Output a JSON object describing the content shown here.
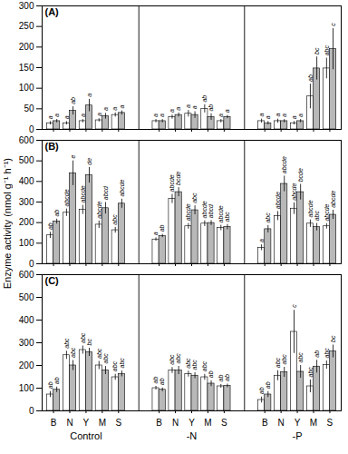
{
  "chart_data": [
    {
      "type": "bar",
      "title": "(A)",
      "categories": [
        "B",
        "N",
        "Y",
        "M",
        "S",
        "B",
        "N",
        "Y",
        "M",
        "S",
        "B",
        "N",
        "Y",
        "M",
        "S"
      ],
      "series": [
        {
          "color": "#ffffff",
          "values": [
            15,
            15,
            20,
            22,
            35,
            20,
            30,
            38,
            50,
            20,
            20,
            20,
            15,
            80,
            148
          ],
          "errors": [
            4,
            4,
            4,
            4,
            5,
            4,
            5,
            8,
            10,
            4,
            5,
            5,
            4,
            30,
            25
          ],
          "labels": [
            "a",
            "a",
            "a",
            "a",
            "a",
            "a",
            "a",
            "a",
            "ab",
            "a",
            "a",
            "a",
            "a",
            "ab",
            "abc"
          ]
        },
        {
          "color": "#b8b8b8",
          "values": [
            20,
            45,
            58,
            32,
            40,
            20,
            35,
            35,
            30,
            30,
            15,
            20,
            20,
            148,
            195
          ],
          "errors": [
            4,
            10,
            15,
            7,
            5,
            4,
            5,
            8,
            8,
            4,
            4,
            4,
            4,
            28,
            50
          ],
          "labels": [
            "a",
            "ab",
            "a",
            "a",
            "a",
            "a",
            "a",
            "a",
            "ab",
            "a",
            "a",
            "a",
            "a",
            "bc",
            "c"
          ]
        }
      ],
      "ylim": [
        0,
        300
      ],
      "yticks": [
        0,
        50,
        100,
        150,
        200,
        250,
        300
      ],
      "tick_labels": "y"
    },
    {
      "type": "bar",
      "title": "(B)",
      "ylabel": "Enzyme activity (nmol g⁻¹ h⁻¹)",
      "categories": [
        "B",
        "N",
        "Y",
        "M",
        "S",
        "B",
        "N",
        "Y",
        "M",
        "S",
        "B",
        "N",
        "Y",
        "M",
        "S"
      ],
      "series": [
        {
          "color": "#ffffff",
          "values": [
            138,
            248,
            262,
            190,
            163,
            118,
            315,
            182,
            195,
            174,
            78,
            232,
            268,
            195,
            182
          ],
          "errors": [
            15,
            18,
            22,
            18,
            14,
            8,
            22,
            14,
            14,
            13,
            14,
            22,
            28,
            18,
            13
          ],
          "labels": [
            "ab",
            "abcde",
            "abcde",
            "abcde",
            "abc",
            "a",
            "abcde",
            "abcde",
            "abcde",
            "abcde",
            "a",
            "abcde",
            "abcde",
            "abcde",
            "abcde"
          ]
        },
        {
          "color": "#b8b8b8",
          "values": [
            205,
            440,
            430,
            270,
            292,
            135,
            348,
            260,
            198,
            178,
            168,
            388,
            348,
            178,
            238
          ],
          "errors": [
            12,
            60,
            38,
            28,
            22,
            8,
            22,
            22,
            12,
            13,
            18,
            38,
            38,
            18,
            22
          ],
          "labels": [
            "ab",
            "e",
            "de",
            "abcd",
            "abcde",
            "ab",
            "bcde",
            "abc",
            "abcd",
            "abc",
            "abc",
            "abcde",
            "bcde",
            "abc",
            "abcde"
          ]
        }
      ],
      "ylim": [
        0,
        600
      ],
      "yticks": [
        0,
        100,
        200,
        300,
        400,
        500,
        600
      ],
      "tick_labels": "y"
    },
    {
      "type": "bar",
      "title": "(C)",
      "categories": [
        "B",
        "N",
        "Y",
        "M",
        "S",
        "B",
        "N",
        "Y",
        "M",
        "S",
        "B",
        "N",
        "Y",
        "M",
        "S"
      ],
      "groups": [
        "Control",
        "-N",
        "-P"
      ],
      "series": [
        {
          "color": "#ffffff",
          "values": [
            72,
            245,
            268,
            200,
            148,
            100,
            178,
            162,
            148,
            108,
            48,
            155,
            348,
            108,
            202
          ],
          "errors": [
            13,
            18,
            18,
            18,
            13,
            8,
            13,
            13,
            13,
            8,
            13,
            22,
            95,
            28,
            18
          ],
          "labels": [
            "ab",
            "abc",
            "abc",
            "abc",
            "abc",
            "ab",
            "abc",
            "abc",
            "abc",
            "ab",
            "ab",
            "abc",
            "c",
            "abc",
            "abc"
          ]
        },
        {
          "color": "#b8b8b8",
          "values": [
            93,
            200,
            258,
            178,
            163,
            93,
            178,
            155,
            120,
            110,
            72,
            170,
            172,
            195,
            262
          ],
          "errors": [
            12,
            22,
            18,
            18,
            13,
            8,
            18,
            13,
            13,
            8,
            13,
            22,
            28,
            28,
            28
          ],
          "labels": [
            "ab",
            "abc",
            "bc",
            "abc",
            "abc",
            "ab",
            "abc",
            "abc",
            "ab",
            "ab",
            "ab",
            "abc",
            "abc",
            "ab",
            "bc"
          ]
        }
      ],
      "ylim": [
        0,
        600
      ],
      "yticks": [
        0,
        100,
        200,
        300,
        400,
        500,
        600
      ]
    }
  ]
}
